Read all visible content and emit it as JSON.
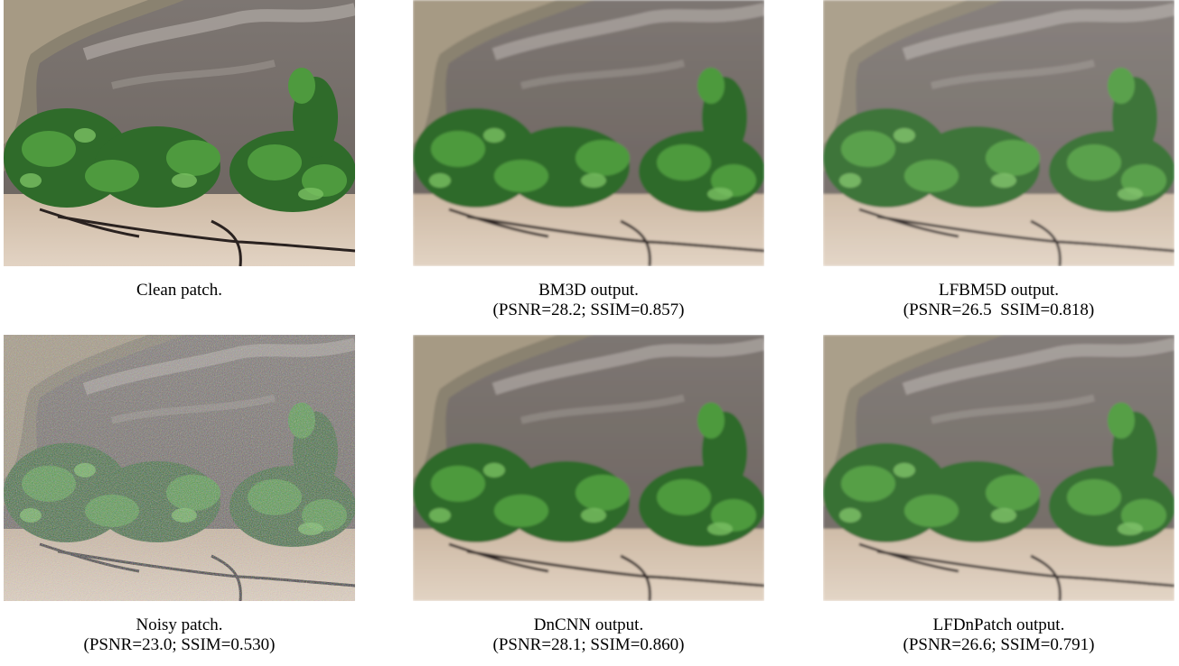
{
  "panels": [
    {
      "caption": [
        "Clean patch."
      ]
    },
    {
      "caption": [
        "BM3D output.",
        "(PSNR=28.2; SSIM=0.857)"
      ]
    },
    {
      "caption": [
        "LFBM5D output.",
        "(PSNR=26.5  SSIM=0.818)"
      ]
    },
    {
      "caption": [
        "Noisy patch.",
        "(PSNR=23.0; SSIM=0.530)"
      ]
    },
    {
      "caption": [
        "DnCNN output.",
        "(PSNR=28.1; SSIM=0.860)"
      ]
    },
    {
      "caption": [
        "LFDnPatch output.",
        "(PSNR=26.6; SSIM=0.791)"
      ]
    }
  ]
}
